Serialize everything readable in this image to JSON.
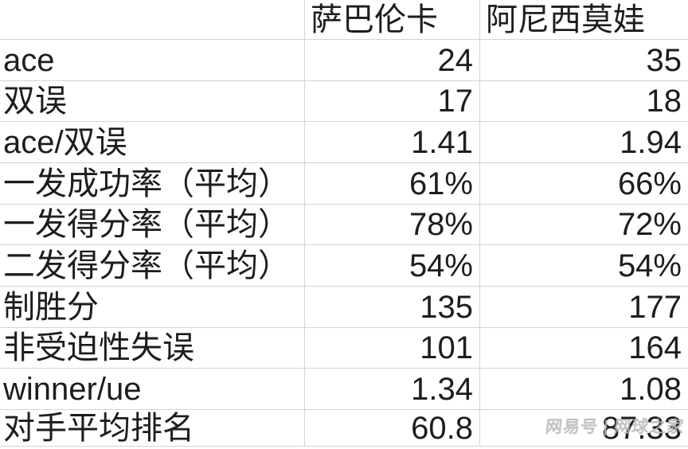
{
  "header": {
    "player1": "萨巴伦卡",
    "player2": "阿尼西莫娃"
  },
  "rows": [
    {
      "label": "ace",
      "p1": "24",
      "p2": "35"
    },
    {
      "label": "双误",
      "p1": "17",
      "p2": "18"
    },
    {
      "label": "ace/双误",
      "p1": "1.41",
      "p2": "1.94"
    },
    {
      "label": "一发成功率（平均）",
      "p1": "61%",
      "p2": "66%"
    },
    {
      "label": "一发得分率（平均）",
      "p1": "78%",
      "p2": "72%"
    },
    {
      "label": "二发得分率（平均）",
      "p1": "54%",
      "p2": "54%"
    },
    {
      "label": "制胜分",
      "p1": "135",
      "p2": "177"
    },
    {
      "label": "非受迫性失误",
      "p1": "101",
      "p2": "164"
    },
    {
      "label": "winner/ue",
      "p1": "1.34",
      "p2": "1.08"
    },
    {
      "label": "对手平均排名",
      "p1": "60.8",
      "p2": "87.33"
    }
  ],
  "watermark": "网易号 | 网球之家",
  "colors": {
    "background": "#ffffff",
    "gridline": "#d4d4d4",
    "text": "#1d1d1d",
    "watermark_gray": "#d7d7d7"
  }
}
